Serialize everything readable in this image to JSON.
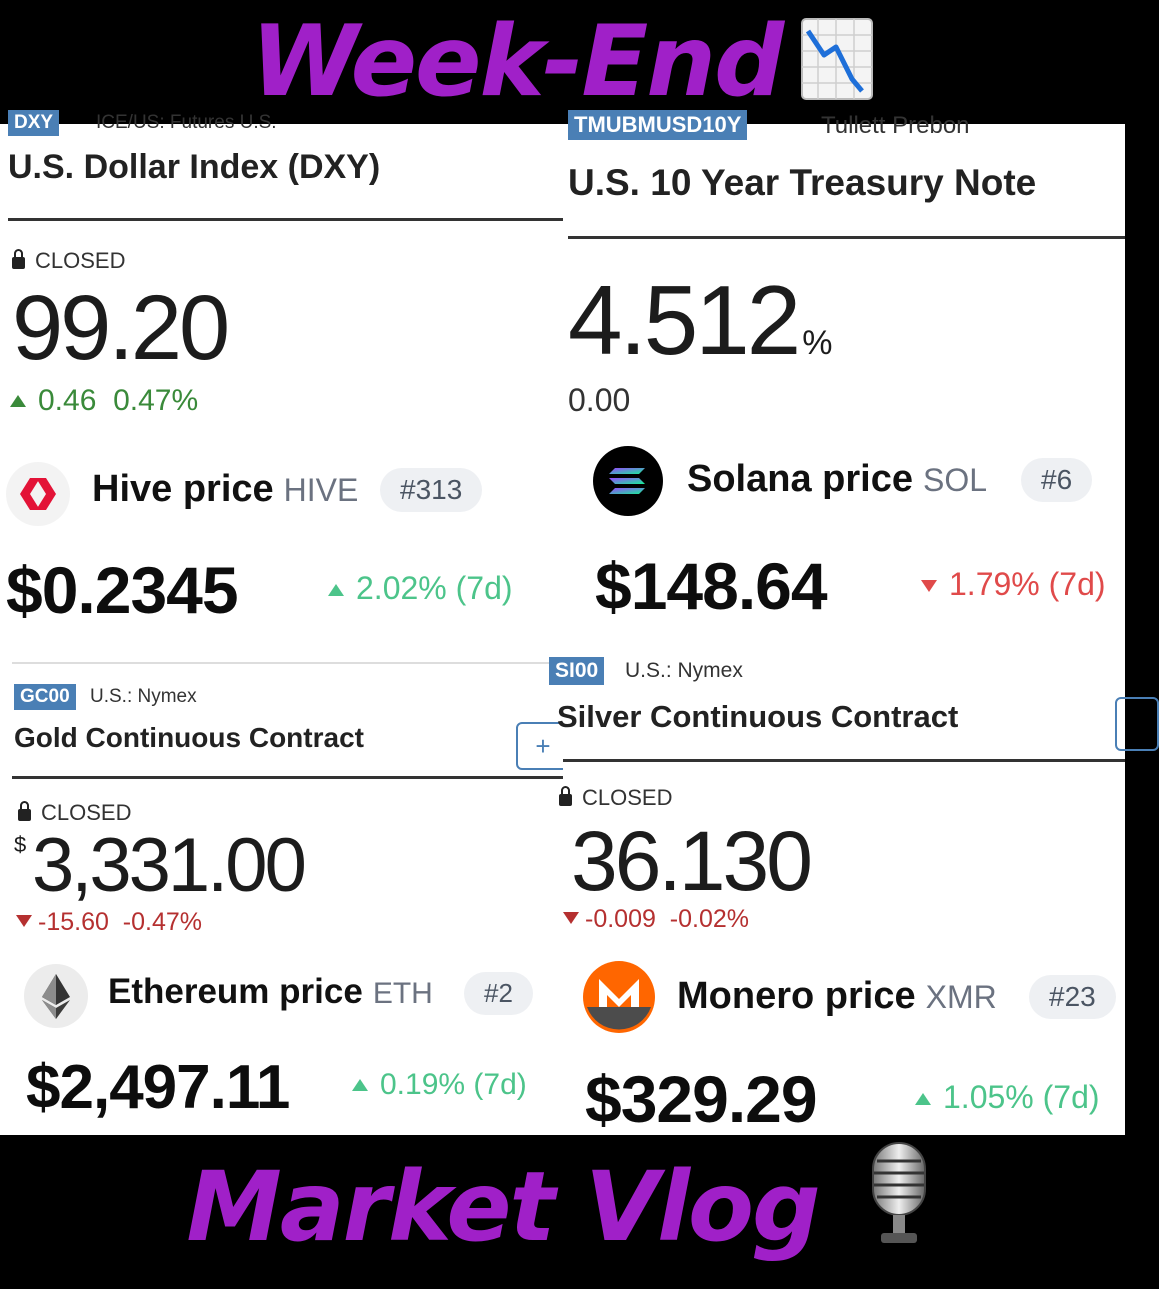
{
  "header": {
    "title": "Week-End",
    "emoji": "chart-decreasing"
  },
  "footer": {
    "title": "Market Vlog",
    "emoji": "microphone"
  },
  "dxy": {
    "tag": "DXY",
    "exchange": "ICE/US: Futures U.S.",
    "title": "U.S. Dollar Index (DXY)",
    "status": "CLOSED",
    "value": "99.20",
    "change": "0.46",
    "change_pct": "0.47%"
  },
  "tnote": {
    "tag": "TMUBMUSD10Y",
    "exchange": "Tullett Prebon",
    "title": "U.S. 10 Year Treasury Note",
    "value": "4.512",
    "unit": "%",
    "change": "0.00"
  },
  "hive": {
    "name": "Hive price",
    "symbol": "HIVE",
    "rank": "#313",
    "price": "$0.2345",
    "change": "2.02% (7d)",
    "logo_color": "#e31337"
  },
  "solana": {
    "name": "Solana price",
    "symbol": "SOL",
    "rank": "#6",
    "price": "$148.64",
    "change": "1.79% (7d)",
    "logo_color": "#000000"
  },
  "gold": {
    "tag": "GC00",
    "exchange": "U.S.: Nymex",
    "title": "Gold Continuous Contract",
    "status": "CLOSED",
    "currency": "$",
    "value": "3,331.00",
    "change": "-15.60",
    "change_pct": "-0.47%",
    "plus": "+"
  },
  "silver": {
    "tag": "SI00",
    "exchange": "U.S.: Nymex",
    "title": "Silver Continuous Contract",
    "status": "CLOSED",
    "value": "36.130",
    "change": "-0.009",
    "change_pct": "-0.02%"
  },
  "ethereum": {
    "name": "Ethereum price",
    "symbol": "ETH",
    "rank": "#2",
    "price": "$2,497.11",
    "change": "0.19% (7d)",
    "logo_color": "#ececec"
  },
  "monero": {
    "name": "Monero price",
    "symbol": "XMR",
    "rank": "#23",
    "price": "$329.29",
    "change": "1.05% (7d)",
    "logo_color": "#ff6600"
  }
}
